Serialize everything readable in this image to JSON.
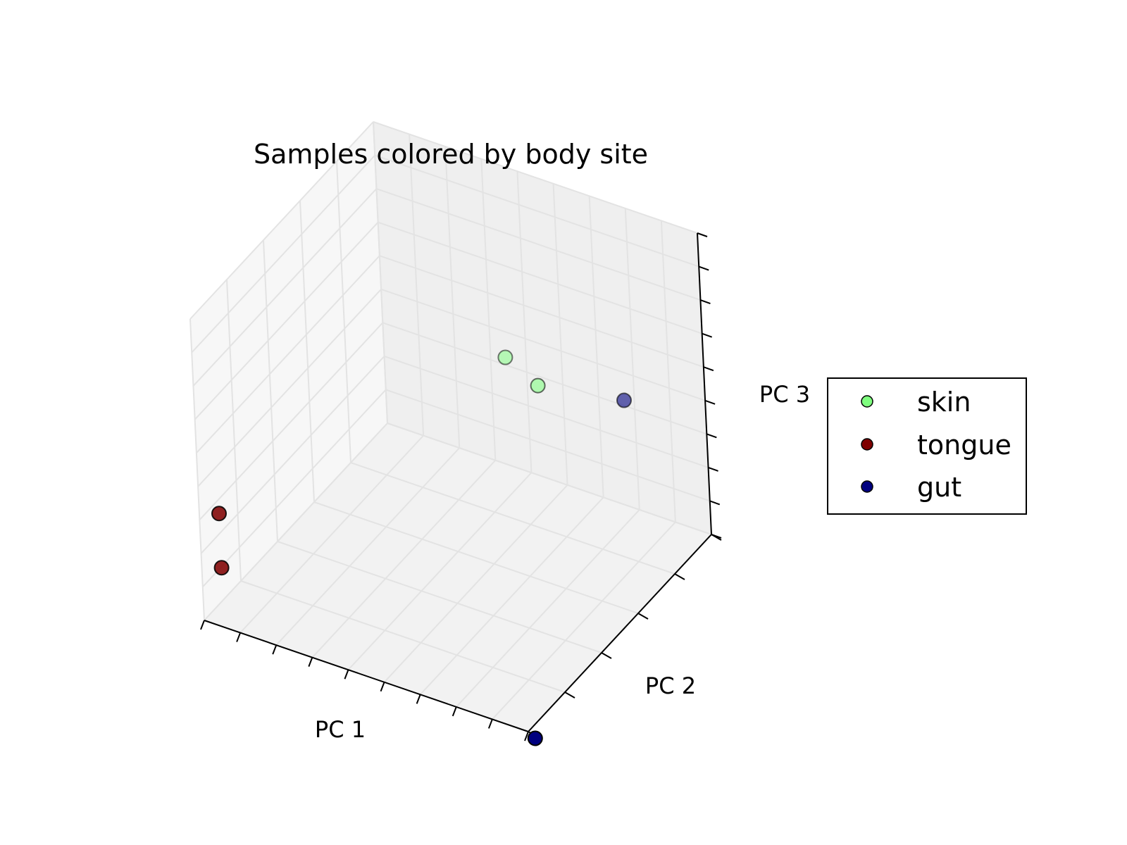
{
  "chart_data": {
    "type": "scatter",
    "projection": "3d",
    "title": "Samples colored by body site",
    "xlabel": "PC 1",
    "ylabel": "PC 2",
    "zlabel": "PC 3",
    "tick_labels_shown": false,
    "grid": true,
    "legend_position": "right",
    "series": [
      {
        "name": "skin",
        "color": "#7fff7f",
        "points": [
          {
            "x": 0.47,
            "y": 0.85,
            "z": 0.49
          },
          {
            "x": 0.58,
            "y": 0.83,
            "z": 0.45
          }
        ]
      },
      {
        "name": "tongue",
        "color": "#7f0000",
        "points": [
          {
            "x": 0.05,
            "y": 0.02,
            "z": 0.36
          },
          {
            "x": 0.05,
            "y": 0.02,
            "z": 0.18
          }
        ]
      },
      {
        "name": "gut",
        "color": "#00007f",
        "points": [
          {
            "x": 0.8,
            "y": 0.91,
            "z": 0.43
          },
          {
            "x": 0.9,
            "y": 0.2,
            "z": -0.19
          }
        ]
      }
    ]
  }
}
